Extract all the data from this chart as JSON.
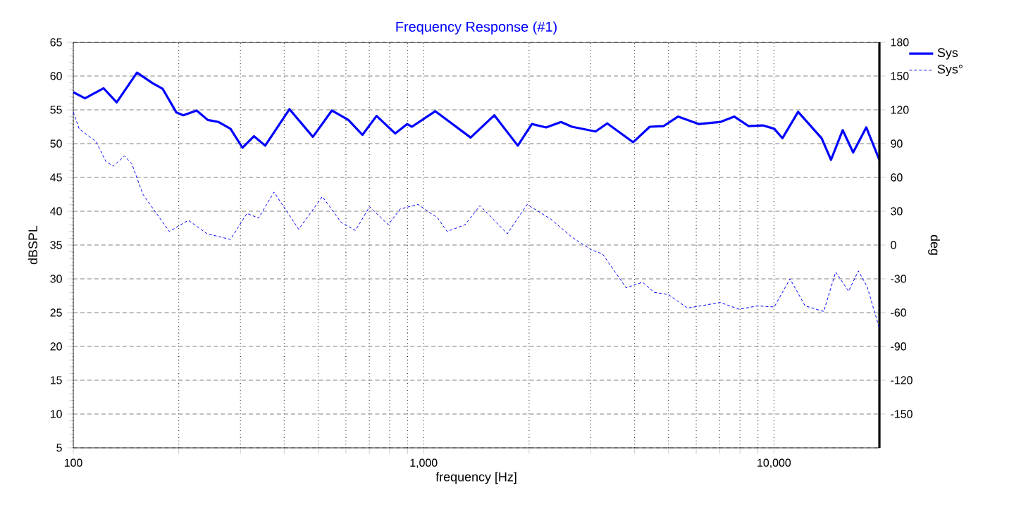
{
  "chart_data": {
    "type": "line",
    "title": "Frequency Response (#1)",
    "xlabel": "frequency [Hz]",
    "ylabel": "dBSPL",
    "y2label": "deg",
    "log": "x",
    "grid": true,
    "legend": "top right",
    "xlim": [
      100,
      20000
    ],
    "ylim": [
      5,
      65
    ],
    "y2lim": [
      -180,
      180
    ],
    "xticks": [
      {
        "value": 100,
        "label": "100"
      },
      {
        "value": 200,
        "label": null
      },
      {
        "value": 300,
        "label": null
      },
      {
        "value": 400,
        "label": null
      },
      {
        "value": 500,
        "label": null
      },
      {
        "value": 600,
        "label": null
      },
      {
        "value": 700,
        "label": null
      },
      {
        "value": 800,
        "label": null
      },
      {
        "value": 900,
        "label": null
      },
      {
        "value": 1000,
        "label": "1,000"
      },
      {
        "value": 2000,
        "label": null
      },
      {
        "value": 3000,
        "label": null
      },
      {
        "value": 4000,
        "label": null
      },
      {
        "value": 5000,
        "label": null
      },
      {
        "value": 6000,
        "label": null
      },
      {
        "value": 7000,
        "label": null
      },
      {
        "value": 8000,
        "label": null
      },
      {
        "value": 9000,
        "label": null
      },
      {
        "value": 10000,
        "label": "10,000"
      }
    ],
    "yticks": [
      5,
      10,
      15,
      20,
      25,
      30,
      35,
      40,
      45,
      50,
      55,
      60,
      65
    ],
    "y2ticks": [
      -150,
      -120,
      -90,
      -60,
      -30,
      0,
      30,
      60,
      90,
      120,
      150,
      180
    ],
    "series": [
      {
        "name": "Sys",
        "color": "#0000ff",
        "line_style": "solid",
        "x": [
          100,
          108,
          122,
          133,
          152,
          169,
          180,
          197,
          206,
          225,
          242,
          260,
          281,
          304,
          328,
          353,
          414,
          483,
          547,
          610,
          669,
          734,
          830,
          897,
          926,
          1080,
          1362,
          1592,
          1857,
          2037,
          2237,
          2467,
          2651,
          3096,
          3343,
          3963,
          4420,
          4844,
          5320,
          6110,
          7030,
          7710,
          8460,
          9290,
          10020,
          10570,
          11720,
          13680,
          14550,
          15710,
          16830,
          18340,
          20000
        ],
        "values": [
          57.6,
          56.7,
          58.2,
          56.1,
          60.5,
          58.9,
          58.1,
          54.6,
          54.2,
          54.9,
          53.5,
          53.2,
          52.2,
          49.4,
          51.1,
          49.7,
          55.1,
          51.0,
          54.9,
          53.5,
          51.3,
          54.1,
          51.5,
          52.9,
          52.5,
          54.8,
          50.9,
          54.2,
          49.7,
          52.9,
          52.4,
          53.2,
          52.5,
          51.8,
          53.0,
          50.2,
          52.5,
          52.6,
          54.0,
          52.9,
          53.2,
          54.0,
          52.6,
          52.7,
          52.2,
          50.8,
          54.7,
          50.8,
          47.6,
          52.0,
          48.7,
          52.4,
          47.6
        ]
      },
      {
        "name": "Sys°",
        "color": "#0000ff",
        "line_style": "dashed",
        "axis": "y2",
        "x": [
          100,
          104,
          116,
          124,
          130,
          140,
          147,
          158,
          188,
          213,
          241,
          281,
          313,
          338,
          374,
          440,
          514,
          582,
          639,
          701,
          793,
          857,
          964,
          1097,
          1167,
          1313,
          1449,
          1733,
          1975,
          2307,
          2651,
          3000,
          3243,
          3784,
          4217,
          4550,
          5000,
          5662,
          7030,
          7950,
          8996,
          10020,
          11110,
          12270,
          13870,
          15000,
          16330,
          17420,
          18450,
          20000
        ],
        "values": [
          118,
          103,
          92,
          74,
          70,
          79,
          72,
          45,
          12,
          22,
          10,
          5,
          28,
          24,
          47,
          14,
          43,
          20,
          13,
          34,
          18,
          32,
          36,
          24,
          12,
          18,
          35,
          10,
          36,
          23,
          7,
          -4,
          -8,
          -38,
          -33,
          -42,
          -44,
          -56,
          -51,
          -57,
          -54,
          -55,
          -30,
          -54,
          -59,
          -24,
          -41,
          -23,
          -37,
          -74
        ]
      }
    ]
  }
}
